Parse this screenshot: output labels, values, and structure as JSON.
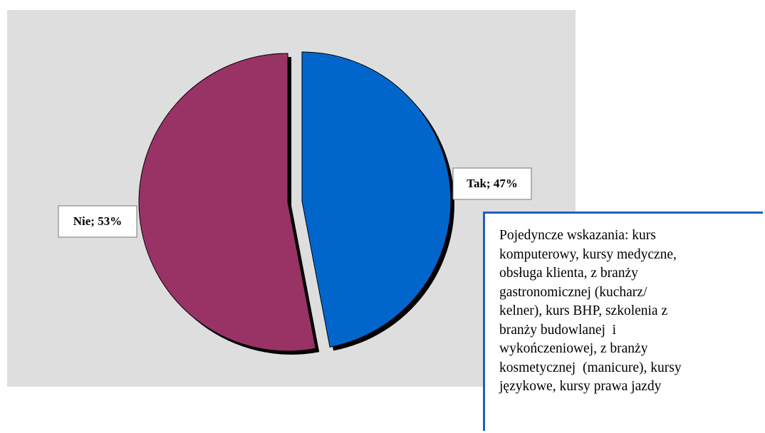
{
  "chart_data": {
    "type": "pie",
    "categories": [
      "Tak",
      "Nie"
    ],
    "values": [
      47,
      53
    ],
    "value_labels": [
      "Tak; 47%",
      "Nie; 53%"
    ],
    "colors": [
      "#0066cc",
      "#993366"
    ],
    "annotation_lines": [
      "Pojedyncze wskazania: kurs",
      "komputerowy, kursy medyczne,",
      "obsługa klienta, z branży",
      "gastronomicznej (kucharz/",
      "kelner), kurs BHP, szkolenia z",
      "branży budowlanej  i",
      "wykończeniowej, z branży",
      "kosmetycznej  (manicure), kursy",
      "językowe, kursy prawa jazdy"
    ]
  }
}
